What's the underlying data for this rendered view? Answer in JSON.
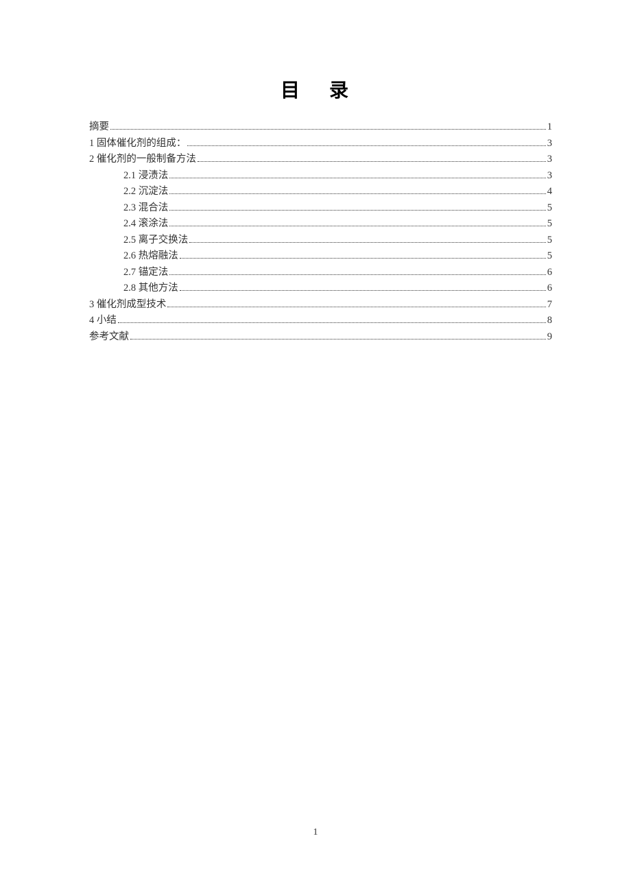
{
  "title": "目 录",
  "pageNumber": "1",
  "entries": [
    {
      "label": "摘要",
      "page": "1",
      "indent": false
    },
    {
      "label": "1  固体催化剂的组成：",
      "page": "3",
      "indent": false
    },
    {
      "label": "2  催化剂的一般制备方法",
      "page": "3",
      "indent": false
    },
    {
      "label": "2.1  浸渍法",
      "page": "3",
      "indent": true
    },
    {
      "label": "2.2  沉淀法 ",
      "page": "4",
      "indent": true
    },
    {
      "label": "2.3  混合法 ",
      "page": "5",
      "indent": true
    },
    {
      "label": "2.4  滚涂法 ",
      "page": "5",
      "indent": true
    },
    {
      "label": "2.5  离子交换法",
      "page": "5",
      "indent": true
    },
    {
      "label": "2.6  热熔融法 ",
      "page": "5",
      "indent": true
    },
    {
      "label": "2.7 锚定法 ",
      "page": "6",
      "indent": true
    },
    {
      "label": "2.8  其他方法",
      "page": "6",
      "indent": true
    },
    {
      "label": "3  催化剂成型技术",
      "page": "7",
      "indent": false
    },
    {
      "label": "4  小结",
      "page": "8",
      "indent": false
    },
    {
      "label": "参考文献",
      "page": "9",
      "indent": false
    }
  ]
}
